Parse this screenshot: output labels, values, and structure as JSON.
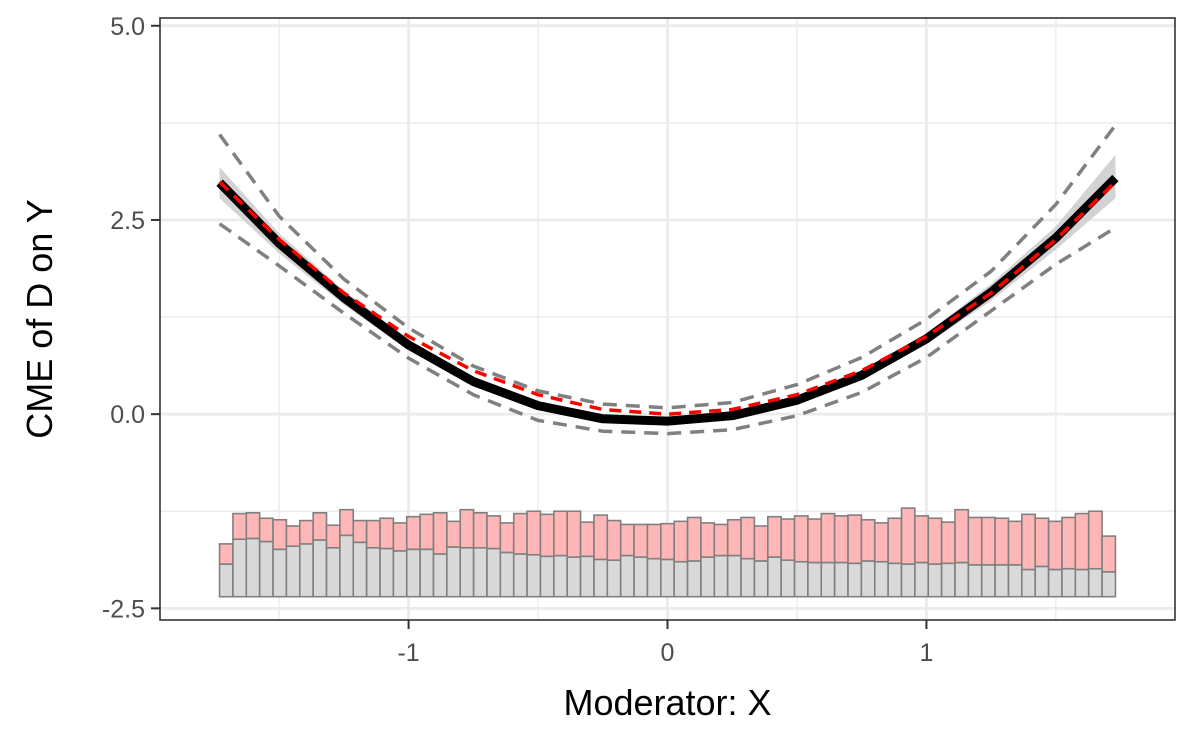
{
  "chart_data": {
    "type": "line",
    "title": "",
    "xlabel": "Moderator: X",
    "ylabel": "CME of D on Y",
    "xlim": [
      -1.96,
      1.96
    ],
    "ylim": [
      -2.65,
      5.1
    ],
    "x_ticks": [
      -1,
      0,
      1
    ],
    "x_tick_labels": [
      "-1",
      "0",
      "1"
    ],
    "y_ticks": [
      -2.5,
      0,
      2.5,
      5
    ],
    "y_tick_labels": [
      "-2.5",
      "0.0",
      "2.5",
      "5.0"
    ],
    "grid": true,
    "legend": "none",
    "colors": {
      "estimate": "#000000",
      "truth": "#ff0000",
      "confidence_band": "#d3d3d3",
      "dashed_bounds": "#808080",
      "hist_treated": "#ffb6b6",
      "hist_control": "#d9d9d9",
      "hist_outline": "#808080"
    },
    "series": [
      {
        "role": "estimate",
        "style": "solid-thick",
        "x": [
          -1.73,
          -1.5,
          -1.25,
          -1.0,
          -0.75,
          -0.5,
          -0.25,
          0.0,
          0.25,
          0.5,
          0.75,
          1.0,
          1.25,
          1.5,
          1.73
        ],
        "y": [
          2.98,
          2.2,
          1.5,
          0.89,
          0.42,
          0.11,
          -0.06,
          -0.09,
          -0.02,
          0.18,
          0.5,
          0.97,
          1.57,
          2.27,
          3.04
        ]
      },
      {
        "role": "truth",
        "style": "dashed",
        "x": [
          -1.73,
          -1.5,
          -1.25,
          -1.0,
          -0.75,
          -0.5,
          -0.25,
          0.0,
          0.25,
          0.5,
          0.75,
          1.0,
          1.25,
          1.5,
          1.73
        ],
        "y": [
          2.99,
          2.25,
          1.56,
          1.0,
          0.56,
          0.25,
          0.06,
          0.0,
          0.06,
          0.25,
          0.56,
          1.0,
          1.56,
          2.25,
          2.99
        ]
      },
      {
        "role": "band-lower",
        "style": "area",
        "x": [
          -1.73,
          -1.5,
          -1.25,
          -1.0,
          -0.75,
          -0.5,
          -0.25,
          0.0,
          0.25,
          0.5,
          0.75,
          1.0,
          1.25,
          1.5,
          1.73
        ],
        "y": [
          2.78,
          2.07,
          1.41,
          0.82,
          0.36,
          0.06,
          -0.1,
          -0.13,
          -0.06,
          0.13,
          0.44,
          0.9,
          1.46,
          2.12,
          2.78
        ]
      },
      {
        "role": "band-upper",
        "style": "area",
        "x": [
          -1.73,
          -1.5,
          -1.25,
          -1.0,
          -0.75,
          -0.5,
          -0.25,
          0.0,
          0.25,
          0.5,
          0.75,
          1.0,
          1.25,
          1.5,
          1.73
        ],
        "y": [
          3.18,
          2.33,
          1.59,
          0.96,
          0.48,
          0.16,
          -0.02,
          -0.05,
          0.02,
          0.23,
          0.56,
          1.04,
          1.68,
          2.42,
          3.34
        ]
      },
      {
        "role": "dashed-lower",
        "style": "dashed",
        "x": [
          -1.73,
          -1.5,
          -1.25,
          -1.0,
          -0.75,
          -0.5,
          -0.25,
          0.0,
          0.25,
          0.5,
          0.75,
          1.0,
          1.25,
          1.5,
          1.73
        ],
        "y": [
          2.45,
          1.91,
          1.3,
          0.72,
          0.25,
          -0.08,
          -0.22,
          -0.25,
          -0.2,
          -0.02,
          0.28,
          0.73,
          1.33,
          1.93,
          2.4
        ]
      },
      {
        "role": "dashed-upper",
        "style": "dashed",
        "x": [
          -1.73,
          -1.5,
          -1.25,
          -1.0,
          -0.75,
          -0.5,
          -0.25,
          0.0,
          0.25,
          0.5,
          0.75,
          1.0,
          1.25,
          1.5,
          1.73
        ],
        "y": [
          3.6,
          2.55,
          1.74,
          1.11,
          0.62,
          0.3,
          0.13,
          0.08,
          0.15,
          0.38,
          0.73,
          1.22,
          1.84,
          2.7,
          3.72
        ]
      }
    ],
    "histogram": {
      "range": [
        -1.73,
        1.73
      ],
      "baseline": -2.35,
      "total_top": [
        -1.67,
        -1.28,
        -1.27,
        -1.34,
        -1.36,
        -1.44,
        -1.37,
        -1.27,
        -1.43,
        -1.23,
        -1.37,
        -1.37,
        -1.34,
        -1.4,
        -1.32,
        -1.29,
        -1.27,
        -1.38,
        -1.23,
        -1.27,
        -1.31,
        -1.4,
        -1.28,
        -1.25,
        -1.29,
        -1.25,
        -1.25,
        -1.39,
        -1.3,
        -1.37,
        -1.42,
        -1.42,
        -1.42,
        -1.41,
        -1.38,
        -1.33,
        -1.4,
        -1.42,
        -1.36,
        -1.33,
        -1.44,
        -1.32,
        -1.35,
        -1.31,
        -1.35,
        -1.28,
        -1.31,
        -1.3,
        -1.36,
        -1.4,
        -1.34,
        -1.21,
        -1.31,
        -1.34,
        -1.39,
        -1.23,
        -1.33,
        -1.33,
        -1.34,
        -1.38,
        -1.29,
        -1.34,
        -1.38,
        -1.33,
        -1.28,
        -1.25,
        -1.57
      ],
      "control_top": [
        -1.93,
        -1.61,
        -1.6,
        -1.64,
        -1.74,
        -1.7,
        -1.67,
        -1.62,
        -1.72,
        -1.56,
        -1.65,
        -1.72,
        -1.73,
        -1.76,
        -1.74,
        -1.74,
        -1.8,
        -1.71,
        -1.72,
        -1.72,
        -1.73,
        -1.78,
        -1.8,
        -1.81,
        -1.83,
        -1.82,
        -1.84,
        -1.83,
        -1.87,
        -1.88,
        -1.82,
        -1.84,
        -1.86,
        -1.87,
        -1.9,
        -1.89,
        -1.84,
        -1.82,
        -1.82,
        -1.86,
        -1.89,
        -1.84,
        -1.88,
        -1.9,
        -1.91,
        -1.91,
        -1.91,
        -1.92,
        -1.89,
        -1.9,
        -1.92,
        -1.93,
        -1.91,
        -1.93,
        -1.92,
        -1.91,
        -1.94,
        -1.94,
        -1.94,
        -1.94,
        -2.0,
        -1.96,
        -2.0,
        -1.99,
        -2.0,
        -1.99,
        -2.03
      ]
    }
  }
}
